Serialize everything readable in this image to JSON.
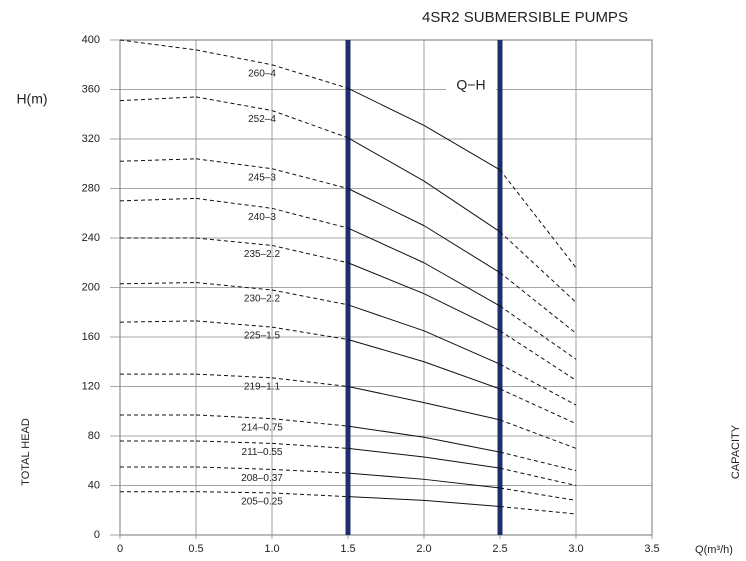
{
  "chart_data": {
    "type": "line",
    "title": "4SR2 SUBMERSIBLE PUMPS",
    "subtitle": "Q−H",
    "y_unit": "H(m)",
    "y_label": "TOTAL HEAD",
    "x_label": "CAPACITY",
    "x_unit": "Q(m³/h)",
    "x": [
      0,
      0.5,
      1.0,
      1.5,
      2.0,
      2.5,
      3.0
    ],
    "xlim": [
      0,
      3.5
    ],
    "xticks": [
      0,
      0.5,
      {
        "value": 1.0,
        "label": "1.0"
      },
      1.5,
      {
        "value": 2.0,
        "label": "2.0"
      },
      2.5,
      {
        "value": 3.0,
        "label": "3.0"
      },
      3.5
    ],
    "ylim": [
      0,
      400
    ],
    "yticks": [
      0,
      40,
      80,
      120,
      160,
      200,
      240,
      280,
      320,
      360,
      400
    ],
    "operating_range": [
      1.5,
      2.5
    ],
    "range_color": "#1f2f6e",
    "grid": true,
    "series": [
      {
        "name": "260–4",
        "color": "#111",
        "values": [
          400,
          392,
          380,
          361,
          331,
          295,
          216
        ]
      },
      {
        "name": "252–4",
        "color": "#111",
        "values": [
          351,
          354,
          343,
          321,
          286,
          245,
          188
        ]
      },
      {
        "name": "245–3",
        "color": "#111",
        "values": [
          302,
          304,
          296,
          280,
          250,
          212,
          163
        ]
      },
      {
        "name": "240–3",
        "color": "#111",
        "values": [
          270,
          272,
          264,
          248,
          220,
          185,
          142
        ]
      },
      {
        "name": "235–2.2",
        "color": "#111",
        "values": [
          240,
          240,
          234,
          220,
          195,
          165,
          125
        ]
      },
      {
        "name": "230–2.2",
        "color": "#111",
        "values": [
          203,
          204,
          198,
          186,
          165,
          138,
          105
        ]
      },
      {
        "name": "225–1.5",
        "color": "#111",
        "values": [
          172,
          173,
          168,
          158,
          140,
          118,
          90
        ]
      },
      {
        "name": "219–1.1",
        "color": "#111",
        "values": [
          130,
          130,
          127,
          120,
          107,
          93,
          70
        ]
      },
      {
        "name": "214–0.75",
        "color": "#111",
        "values": [
          97,
          97,
          94,
          88,
          79,
          67,
          52
        ]
      },
      {
        "name": "211–0.55",
        "color": "#111",
        "values": [
          76,
          76,
          74,
          70,
          63,
          54,
          40
        ]
      },
      {
        "name": "208–0.37",
        "color": "#111",
        "values": [
          55,
          55,
          53,
          50,
          45,
          38,
          28
        ]
      },
      {
        "name": "205–0.25",
        "color": "#111",
        "values": [
          35,
          35,
          34,
          31,
          28,
          23,
          17
        ]
      }
    ]
  }
}
